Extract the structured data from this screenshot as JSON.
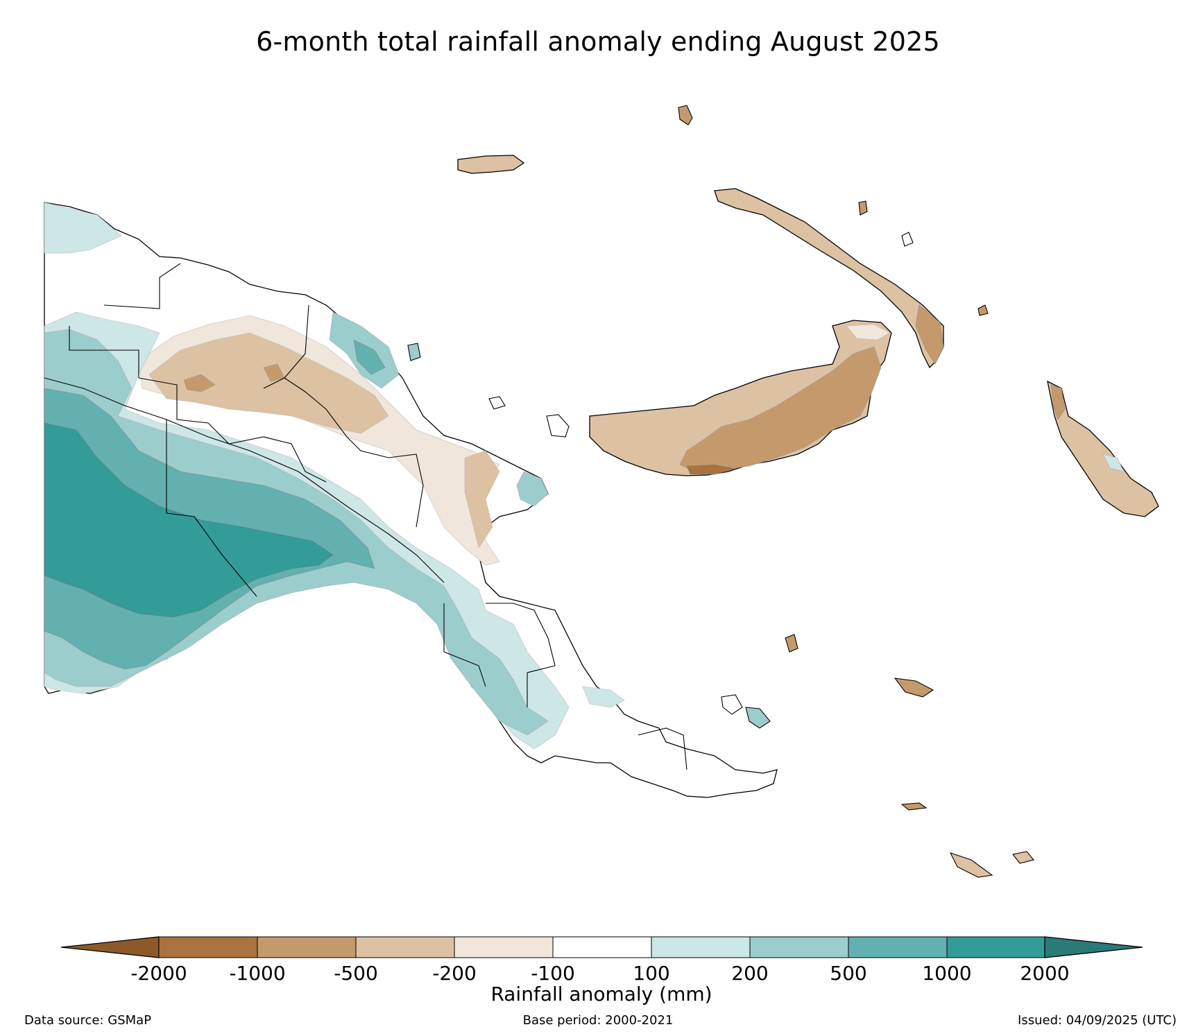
{
  "title": "6-month total rainfall anomaly ending August 2025",
  "colorbar": {
    "label": "Rainfall anomaly (mm)",
    "ticks": [
      "-2000",
      "-1000",
      "-500",
      "-200",
      "-100",
      "100",
      "200",
      "500",
      "1000",
      "2000"
    ],
    "colors": [
      "#8c5a28",
      "#a8733e",
      "#c49a6c",
      "#dcc1a3",
      "#f0e6dc",
      "#ffffff",
      "#cde6e6",
      "#9ccdcd",
      "#63b0b0",
      "#339b98",
      "#2a7b78"
    ]
  },
  "footer": {
    "data_source": "Data source: GSMaP",
    "base_period": "Base period: 2000-2021",
    "issued": "Issued: 04/09/2025 (UTC)"
  }
}
